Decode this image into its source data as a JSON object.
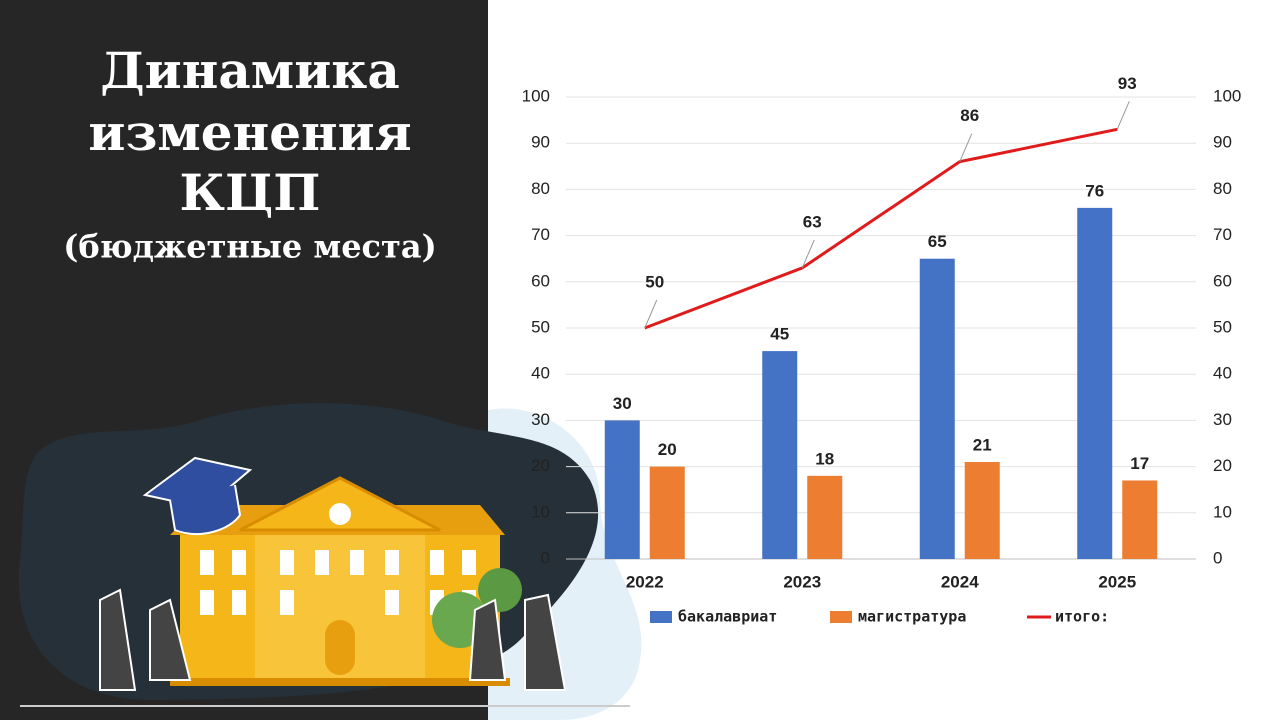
{
  "slide": {
    "title": [
      "Динамика",
      "изменения",
      "КЦП",
      "(бюджетные места)"
    ]
  },
  "chart_data": {
    "type": "combo",
    "categories": [
      "2022",
      "2023",
      "2024",
      "2025"
    ],
    "series": [
      {
        "name": "бакалавриат",
        "type": "bar",
        "color": "#4472c4",
        "values": [
          30,
          45,
          65,
          76
        ]
      },
      {
        "name": "магистратура",
        "type": "bar",
        "color": "#ed7d31",
        "values": [
          20,
          18,
          21,
          17
        ]
      },
      {
        "name": "итого:",
        "type": "line",
        "axis": "y2",
        "color": "#e01b1b",
        "values": [
          50,
          63,
          86,
          93
        ]
      }
    ],
    "ylim": [
      0,
      100
    ],
    "yticks": [
      0,
      10,
      20,
      30,
      40,
      50,
      60,
      70,
      80,
      90,
      100
    ],
    "y2lim": [
      0,
      100
    ],
    "y2ticks": [
      0,
      10,
      20,
      30,
      40,
      50,
      60,
      70,
      80,
      90,
      100
    ],
    "grid": true,
    "legend": "bottom"
  }
}
